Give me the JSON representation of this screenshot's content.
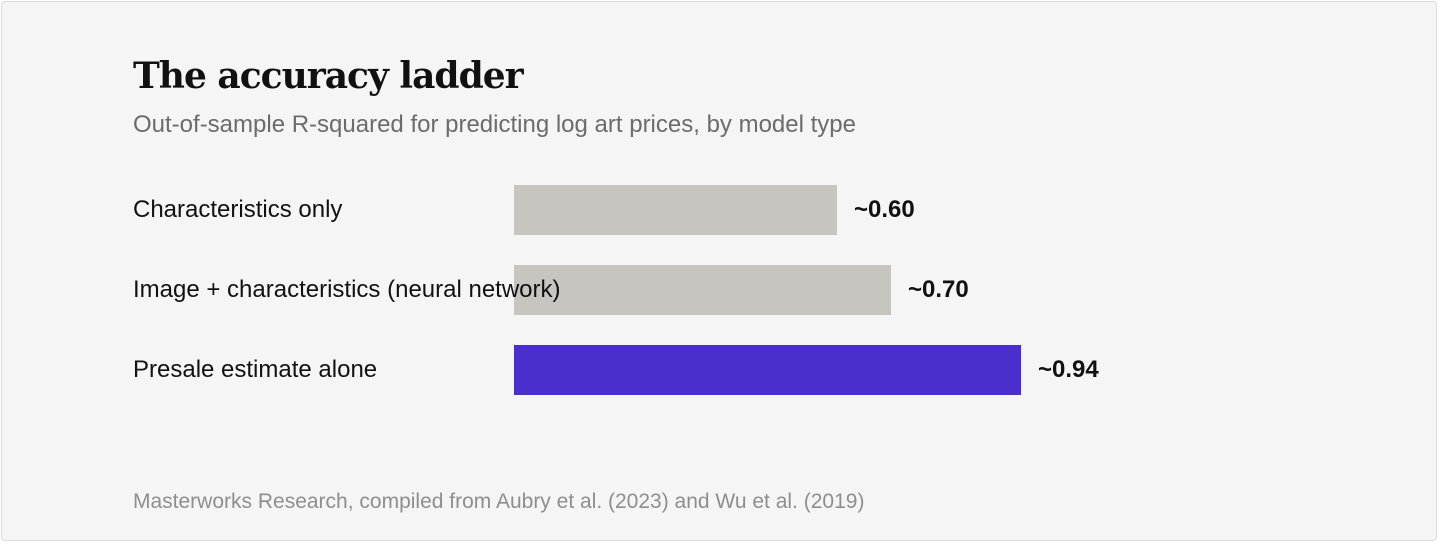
{
  "chart_data": {
    "type": "bar",
    "orientation": "horizontal",
    "title": "The accuracy ladder",
    "subtitle": "Out-of-sample R-squared for predicting log art prices, by model type",
    "categories": [
      "Characteristics only",
      "Image + characteristics (neural network)",
      "Presale estimate alone"
    ],
    "values": [
      0.6,
      0.7,
      0.94
    ],
    "value_labels": [
      "~0.60",
      "~0.70",
      "~0.94"
    ],
    "bar_colors": [
      "#c6c5c0",
      "#c6c5c0",
      "#4b2fcc"
    ],
    "xlim": [
      0,
      1.0
    ],
    "grid": false,
    "legend": "none",
    "source": "Masterworks Research, compiled from Aubry et al. (2023) and Wu et al. (2019)"
  }
}
